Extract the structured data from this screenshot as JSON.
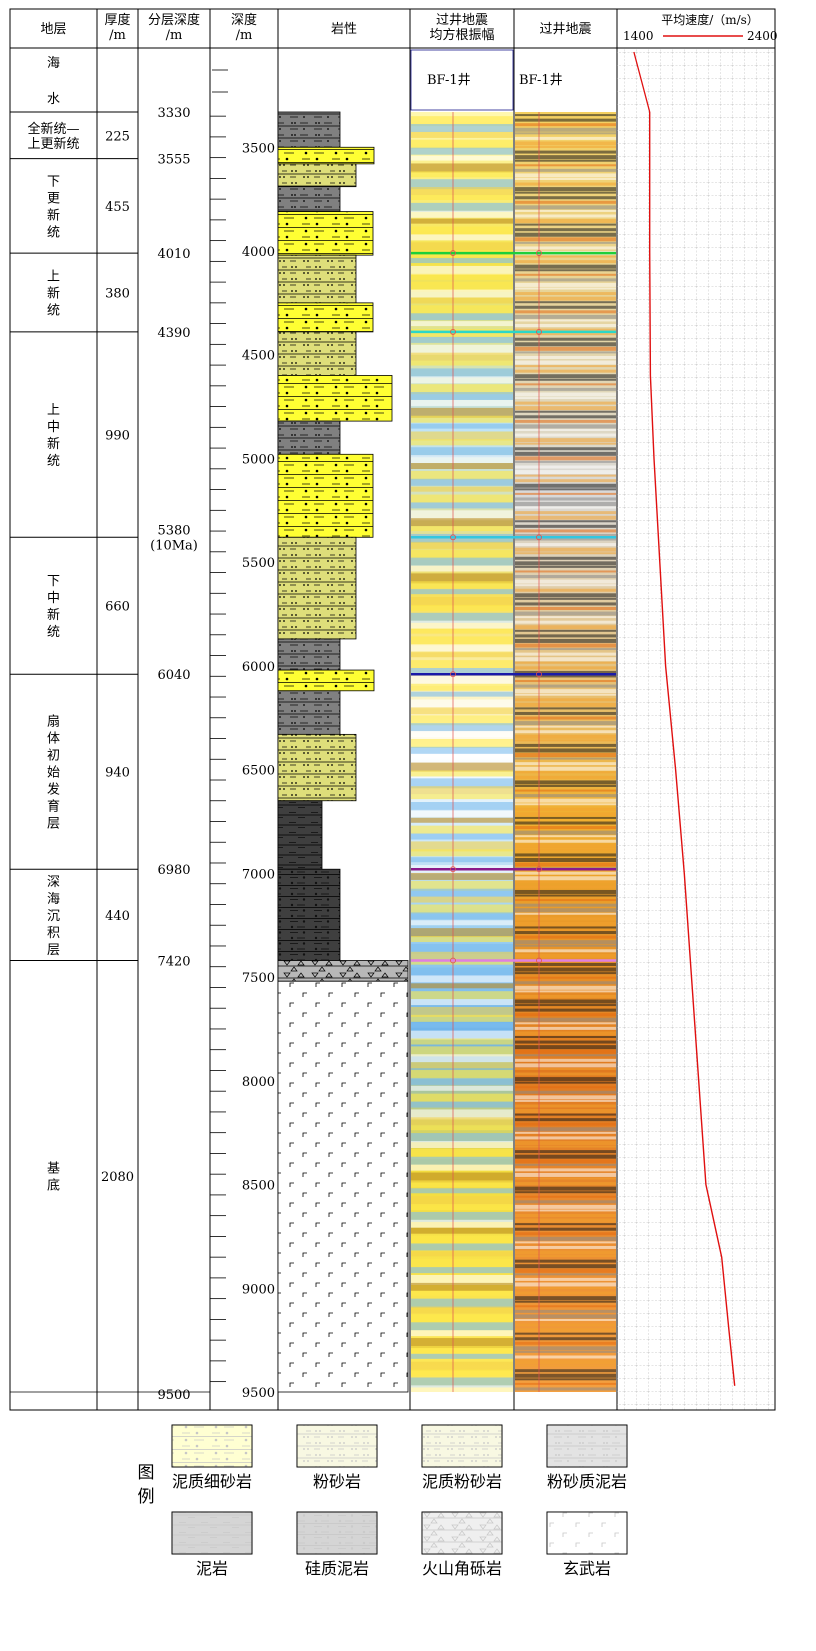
{
  "headers": {
    "strata": [
      "地层"
    ],
    "thickness": [
      "厚度",
      "/m"
    ],
    "layer_depth": [
      "分层深度",
      "/m"
    ],
    "depth": [
      "深度",
      "/m"
    ],
    "lithology": [
      "岩性"
    ],
    "rms": [
      "过井地震",
      "均方根振幅"
    ],
    "seismic": [
      "过井地震"
    ],
    "velocity": [
      "平均速度/（m/s）"
    ]
  },
  "velocity_axis": {
    "min_label": "1400",
    "max_label": "2400"
  },
  "well_label": "BF-1井",
  "strata": [
    {
      "chars": [
        "海",
        "水"
      ],
      "thickness": ""
    },
    {
      "chars": [
        "全新统—",
        "上更新统"
      ],
      "thickness": "225"
    },
    {
      "chars": [
        "下",
        "更",
        "新",
        "统"
      ],
      "thickness": "455"
    },
    {
      "chars": [
        "上",
        "新",
        "统"
      ],
      "thickness": "380"
    },
    {
      "chars": [
        "上",
        "中",
        "新",
        "统"
      ],
      "thickness": "990"
    },
    {
      "chars": [
        "下",
        "中",
        "新",
        "统"
      ],
      "thickness": "660"
    },
    {
      "chars": [
        "扇",
        "体",
        "初",
        "始",
        "发",
        "育",
        "层"
      ],
      "thickness": "940"
    },
    {
      "chars": [
        "深",
        "海",
        "沉",
        "积",
        "层"
      ],
      "thickness": "440"
    },
    {
      "chars": [
        "基",
        "底"
      ],
      "thickness": "2080"
    }
  ],
  "boundaries": [
    {
      "depth": 3330,
      "label": [
        "3330"
      ]
    },
    {
      "depth": 3555,
      "label": [
        "3555"
      ]
    },
    {
      "depth": 4010,
      "label": [
        "4010"
      ]
    },
    {
      "depth": 4390,
      "label": [
        "4390"
      ]
    },
    {
      "depth": 5380,
      "label": [
        "5380",
        "(10Ma)"
      ]
    },
    {
      "depth": 6040,
      "label": [
        "6040"
      ]
    },
    {
      "depth": 6980,
      "label": [
        "6980"
      ]
    },
    {
      "depth": 7420,
      "label": [
        "7420"
      ]
    },
    {
      "depth": 9500,
      "label": [
        "9500"
      ]
    }
  ],
  "depth_ticks": [
    "3500",
    "4000",
    "4500",
    "5000",
    "5500",
    "6000",
    "6500",
    "7000",
    "7500",
    "8000",
    "8500",
    "9000",
    "9500"
  ],
  "lithology_column": [
    {
      "top": 3330,
      "bottom": 3500,
      "type": "粉砂质泥岩"
    },
    {
      "top": 3500,
      "bottom": 3580,
      "type": "泥质细砂岩"
    },
    {
      "top": 3580,
      "bottom": 3690,
      "type": "粉砂岩"
    },
    {
      "top": 3690,
      "bottom": 3810,
      "type": "粉砂质泥岩"
    },
    {
      "top": 3810,
      "bottom": 4020,
      "type": "泥质细砂岩"
    },
    {
      "top": 4020,
      "bottom": 4250,
      "type": "泥质粉砂岩"
    },
    {
      "top": 4250,
      "bottom": 4390,
      "type": "泥质细砂岩"
    },
    {
      "top": 4390,
      "bottom": 4600,
      "type": "泥质粉砂岩"
    },
    {
      "top": 4600,
      "bottom": 4820,
      "type": "泥质细砂岩"
    },
    {
      "top": 4820,
      "bottom": 4980,
      "type": "粉砂质泥岩"
    },
    {
      "top": 4980,
      "bottom": 5380,
      "type": "泥质细砂岩"
    },
    {
      "top": 5380,
      "bottom": 5870,
      "type": "泥质粉砂岩"
    },
    {
      "top": 5870,
      "bottom": 6020,
      "type": "粉砂质泥岩"
    },
    {
      "top": 6020,
      "bottom": 6120,
      "type": "泥质细砂岩"
    },
    {
      "top": 6120,
      "bottom": 6330,
      "type": "粉砂质泥岩"
    },
    {
      "top": 6330,
      "bottom": 6650,
      "type": "泥质粉砂岩"
    },
    {
      "top": 6650,
      "bottom": 6980,
      "type": "泥岩"
    },
    {
      "top": 6980,
      "bottom": 7420,
      "type": "硅质泥岩"
    },
    {
      "top": 7420,
      "bottom": 7520,
      "type": "火山角砾岩"
    },
    {
      "top": 7520,
      "bottom": 9500,
      "type": "玄武岩"
    }
  ],
  "velocity_curve": [
    {
      "depth": 3330,
      "velocity": 1530
    },
    {
      "depth": 4000,
      "velocity": 1530
    },
    {
      "depth": 4600,
      "velocity": 1535
    },
    {
      "depth": 5000,
      "velocity": 1560
    },
    {
      "depth": 5500,
      "velocity": 1600
    },
    {
      "depth": 6000,
      "velocity": 1640
    },
    {
      "depth": 6500,
      "velocity": 1710
    },
    {
      "depth": 7000,
      "velocity": 1770
    },
    {
      "depth": 7500,
      "velocity": 1820
    },
    {
      "depth": 8000,
      "velocity": 1870
    },
    {
      "depth": 8500,
      "velocity": 1920
    },
    {
      "depth": 8850,
      "velocity": 2030
    },
    {
      "depth": 9200,
      "velocity": 2080
    },
    {
      "depth": 9470,
      "velocity": 2120
    }
  ],
  "seismic_horizons": [
    {
      "depth": 4010,
      "color": "#1ecf3a"
    },
    {
      "depth": 4390,
      "color": "#2bd7c8"
    },
    {
      "depth": 5380,
      "color": "#33c7e0"
    },
    {
      "depth": 6040,
      "color": "#1a1aa8"
    },
    {
      "depth": 6980,
      "color": "#8b1c8b"
    },
    {
      "depth": 7420,
      "color": "#e07fe0"
    }
  ],
  "legend": {
    "title": [
      "图",
      "例"
    ],
    "items": [
      "泥质细砂岩",
      "粉砂岩",
      "泥质粉砂岩",
      "粉砂质泥岩",
      "泥岩",
      "硅质泥岩",
      "火山角砾岩",
      "玄武岩"
    ]
  },
  "colors": {
    "sand_yellow": "#ffff33",
    "silt_olive": "#dede7a",
    "mud_gray": "#808080",
    "mud_dark": "#3f3f3f",
    "velocity_line": "#e01010"
  }
}
